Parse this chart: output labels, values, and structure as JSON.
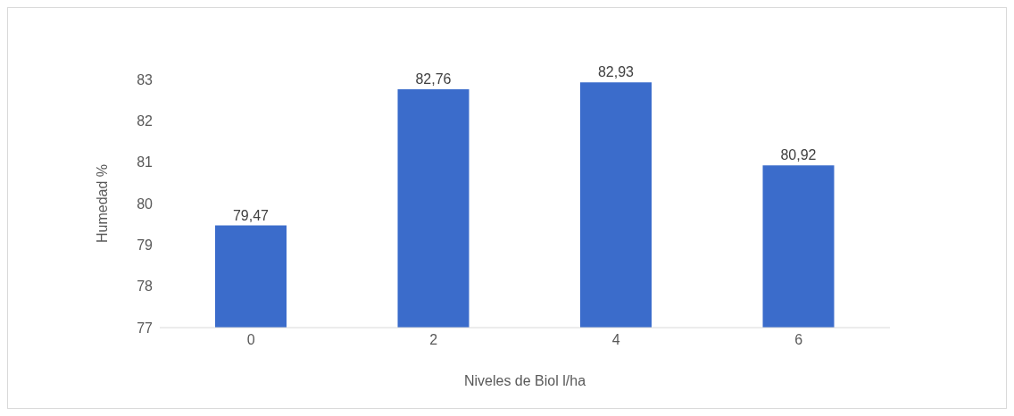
{
  "chart_data": {
    "type": "bar",
    "xlabel": "Niveles de Biol l/ha",
    "ylabel": "Humedad %",
    "categories": [
      "0",
      "2",
      "4",
      "6"
    ],
    "values": [
      79.47,
      82.76,
      82.93,
      80.92
    ],
    "value_labels": [
      "79,47",
      "82,76",
      "82,93",
      "80,92"
    ],
    "color": "#3b6ccb",
    "ylim": [
      77,
      83
    ],
    "yticks": [
      77,
      78,
      79,
      80,
      81,
      82,
      83
    ],
    "grid": false,
    "legend": false
  }
}
